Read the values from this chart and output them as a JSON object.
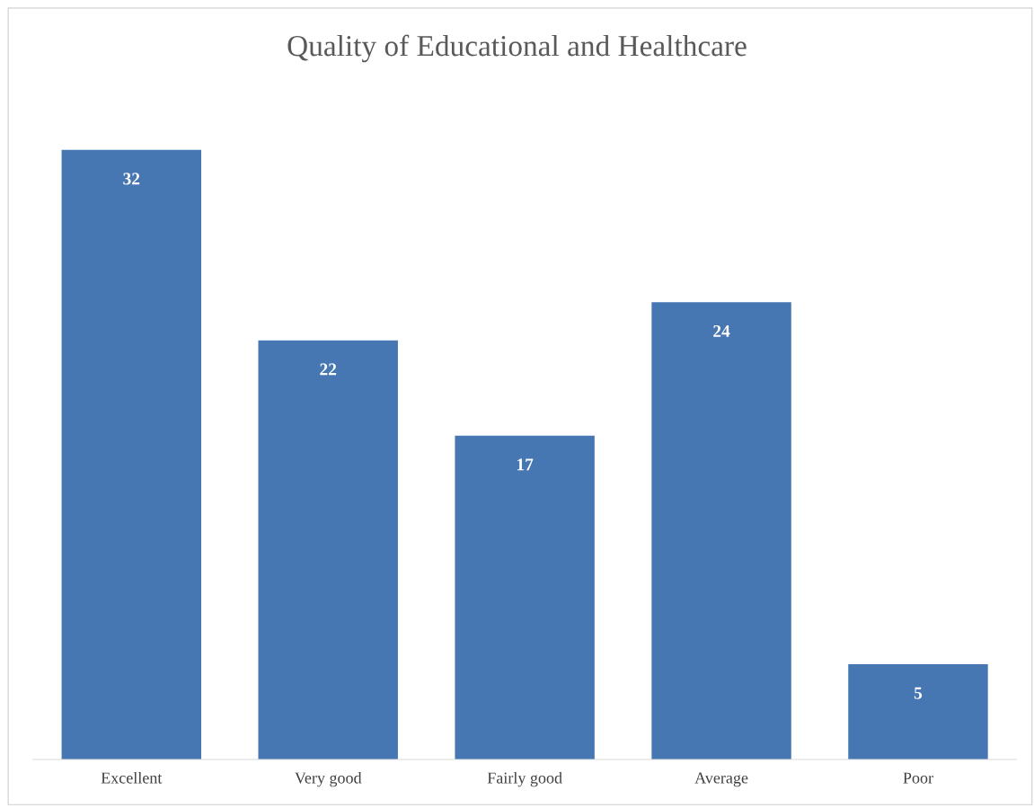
{
  "chart_data": {
    "type": "bar",
    "title": "Quality of Educational and Healthcare",
    "categories": [
      "Excellent",
      "Very good",
      "Fairly good",
      "Average",
      "Poor"
    ],
    "values": [
      32,
      22,
      17,
      24,
      5
    ],
    "color": "#4677b3",
    "data_labels": true
  }
}
